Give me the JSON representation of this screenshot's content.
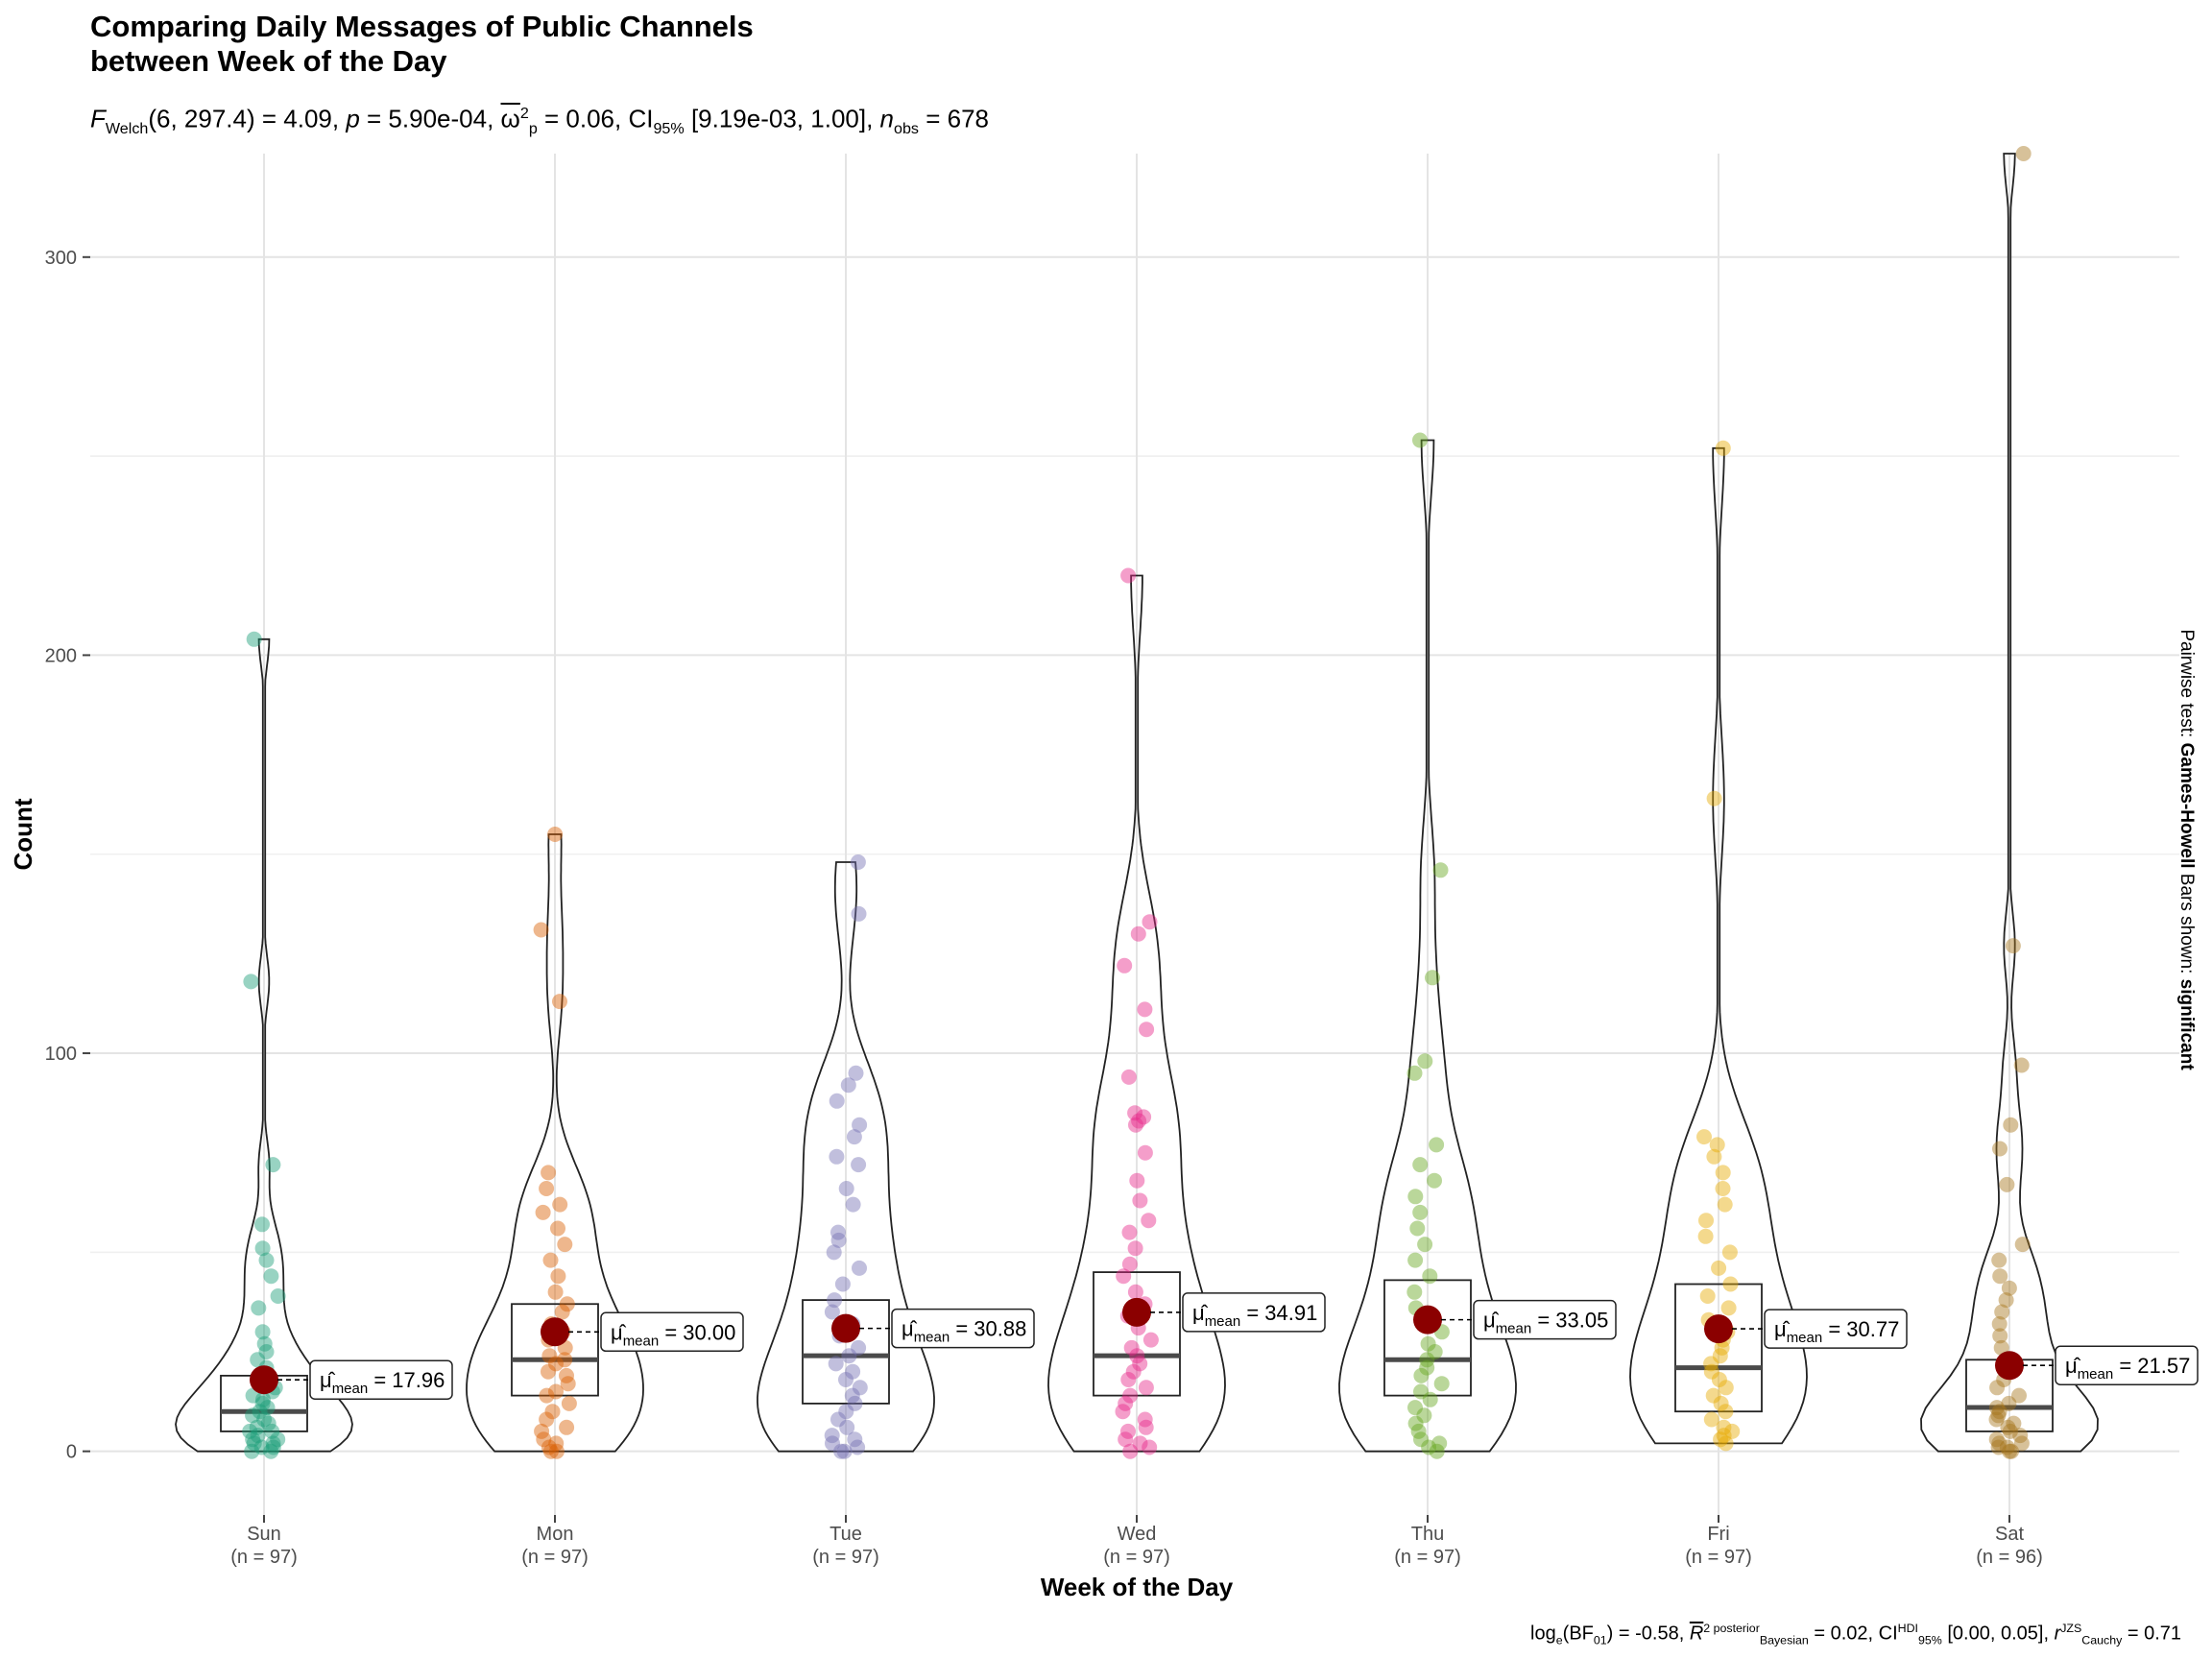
{
  "title_line1": "Comparing Daily Messages of Public Channels",
  "title_line2": "between Week of the Day",
  "subtitle": {
    "f_symbol": "F",
    "f_sub": "Welch",
    "f_args": "(6, 297.4) = 4.09, ",
    "p_symbol": "p",
    "p_text": " = 5.90e-04, ",
    "omega_symbol": "ω",
    "omega_sup": "2",
    "omega_sub": "p",
    "omega_text": " = 0.06, CI",
    "ci_sub": "95%",
    "ci_text": " [9.19e-03, 1.00], ",
    "n_symbol": "n",
    "n_sub": "obs",
    "n_text": " = 678"
  },
  "caption": {
    "bf_prefix": "log",
    "bf_sub": "e",
    "bf_mid": "(BF",
    "bf_sub2": "01",
    "bf_text": ") = -0.58, ",
    "r2_symbol": "R",
    "r2_sup": "2 posterior",
    "r2_sub": "Bayesian",
    "r2_text": " = 0.02, CI",
    "ci_sup": "HDI",
    "ci_sub": "95%",
    "ci_text": " [0.00, 0.05], ",
    "r_symbol": "r",
    "r_sup": "JZS",
    "r_sub": "Cauchy",
    "r_text": " = 0.71"
  },
  "side_label": {
    "prefix": "Pairwise test: ",
    "test": "Games-Howell",
    "middle": " Bars shown: ",
    "shown": "significant"
  },
  "chart_data": {
    "type": "violin-box-scatter",
    "xlabel": "Week of the Day",
    "ylabel": "Count",
    "ylim": [
      -16,
      326
    ],
    "y_ticks": [
      0,
      100,
      200,
      300
    ],
    "grid": true,
    "groups": [
      {
        "category": "Sun",
        "n_label": "(n = 97)",
        "color": "#1B9E77",
        "mean": 17.96,
        "mean_label": "= 17.96",
        "q1": 5,
        "median": 10,
        "q3": 19,
        "min": 0,
        "max": 204,
        "outliers": [
          204,
          118,
          72,
          57,
          51,
          48,
          44,
          39,
          30,
          27,
          25
        ],
        "points": [
          0,
          0,
          1,
          1,
          2,
          2,
          3,
          3,
          4,
          5,
          5,
          6,
          7,
          8,
          9,
          10,
          11,
          12,
          13,
          14,
          15,
          16,
          17,
          19,
          21,
          23,
          25,
          27,
          30,
          36,
          39,
          44,
          48,
          51,
          57,
          72,
          118,
          204
        ]
      },
      {
        "category": "Mon",
        "n_label": "(n = 97)",
        "color": "#D95F02",
        "mean": 30.0,
        "mean_label": "= 30.00",
        "q1": 14,
        "median": 23,
        "q3": 37,
        "min": 0,
        "max": 155,
        "outliers": [
          155,
          131,
          113
        ],
        "points": [
          0,
          0,
          1,
          2,
          3,
          5,
          6,
          8,
          10,
          12,
          14,
          15,
          17,
          19,
          20,
          22,
          23,
          24,
          26,
          28,
          30,
          32,
          35,
          37,
          40,
          44,
          48,
          52,
          56,
          60,
          62,
          66,
          70,
          113,
          131,
          155
        ]
      },
      {
        "category": "Tue",
        "n_label": "(n = 97)",
        "color": "#7570B3",
        "mean": 30.88,
        "mean_label": "= 30.88",
        "q1": 12,
        "median": 24,
        "q3": 38,
        "min": 0,
        "max": 148,
        "outliers": [
          148,
          135,
          95,
          92,
          88,
          82,
          79
        ],
        "points": [
          0,
          0,
          1,
          2,
          3,
          4,
          6,
          8,
          10,
          12,
          14,
          16,
          18,
          20,
          22,
          24,
          26,
          29,
          32,
          35,
          38,
          42,
          46,
          50,
          53,
          55,
          62,
          66,
          72,
          74,
          79,
          82,
          88,
          92,
          95,
          135,
          148
        ]
      },
      {
        "category": "Wed",
        "n_label": "(n = 97)",
        "color": "#E7298A",
        "mean": 34.91,
        "mean_label": "= 34.91",
        "q1": 14,
        "median": 24,
        "q3": 45,
        "min": 0,
        "max": 220,
        "outliers": [
          220,
          133,
          130,
          122,
          111,
          106,
          94,
          85,
          84,
          83,
          82,
          75
        ],
        "points": [
          0,
          1,
          2,
          3,
          5,
          6,
          8,
          10,
          12,
          14,
          16,
          18,
          20,
          22,
          24,
          26,
          28,
          31,
          34,
          37,
          40,
          44,
          47,
          51,
          55,
          58,
          63,
          68,
          75,
          82,
          83,
          84,
          85,
          94,
          106,
          111,
          122,
          130,
          133,
          220
        ]
      },
      {
        "category": "Thu",
        "n_label": "(n = 97)",
        "color": "#66A61E",
        "mean": 33.05,
        "mean_label": "= 33.05",
        "q1": 14,
        "median": 23,
        "q3": 43,
        "min": 0,
        "max": 254,
        "outliers": [
          254,
          146,
          119,
          98,
          95
        ],
        "points": [
          0,
          1,
          2,
          3,
          5,
          7,
          9,
          11,
          13,
          15,
          17,
          19,
          21,
          23,
          25,
          27,
          30,
          33,
          36,
          40,
          44,
          48,
          52,
          56,
          60,
          64,
          68,
          72,
          77,
          95,
          98,
          119,
          146,
          254
        ]
      },
      {
        "category": "Fri",
        "n_label": "(n = 97)",
        "color": "#E6AB02",
        "mean": 30.77,
        "mean_label": "= 30.77",
        "q1": 10,
        "median": 21,
        "q3": 42,
        "min": 2,
        "max": 252,
        "outliers": [
          252,
          164
        ],
        "points": [
          2,
          3,
          4,
          5,
          6,
          8,
          10,
          12,
          14,
          16,
          18,
          20,
          22,
          24,
          26,
          28,
          30,
          33,
          36,
          39,
          42,
          46,
          50,
          54,
          58,
          62,
          66,
          70,
          74,
          77,
          79,
          164,
          252
        ]
      },
      {
        "category": "Sat",
        "n_label": "(n = 96)",
        "color": "#A6761D",
        "mean": 21.57,
        "mean_label": "= 21.57",
        "q1": 5,
        "median": 11,
        "q3": 23,
        "min": 0,
        "max": 326,
        "outliers": [
          326,
          127,
          97,
          82,
          76,
          67,
          52
        ],
        "points": [
          0,
          0,
          1,
          1,
          2,
          2,
          3,
          4,
          5,
          6,
          7,
          8,
          9,
          10,
          11,
          12,
          14,
          16,
          18,
          20,
          23,
          26,
          29,
          32,
          35,
          38,
          41,
          44,
          48,
          52,
          67,
          76,
          82,
          97,
          127,
          326
        ]
      }
    ]
  }
}
